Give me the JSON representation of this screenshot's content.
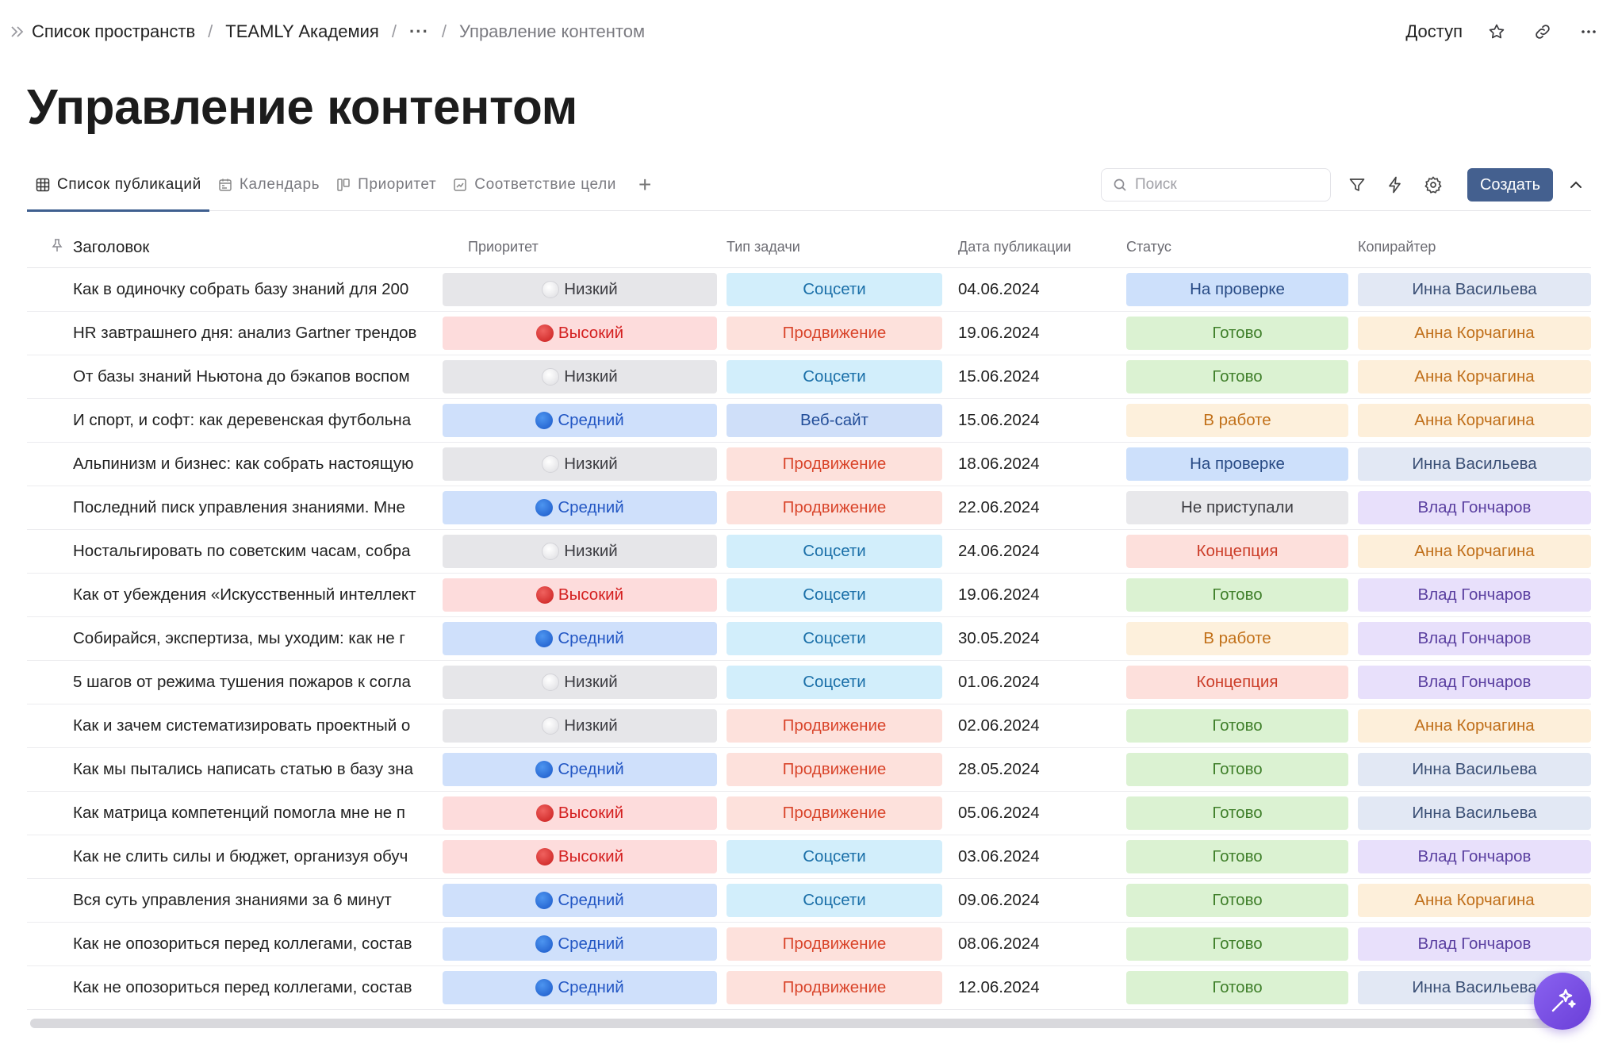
{
  "breadcrumbs": {
    "item1": "Список пространств",
    "item2": "TEAMLY Академия",
    "item3": "···",
    "current": "Управление контентом"
  },
  "top_actions": {
    "access": "Доступ"
  },
  "page_title": "Управление контентом",
  "tabs": [
    {
      "label": "Список публикаций",
      "icon": "table-icon"
    },
    {
      "label": "Календарь",
      "icon": "calendar-icon"
    },
    {
      "label": "Приоритет",
      "icon": "kanban-icon"
    },
    {
      "label": "Соответствие цели",
      "icon": "chart-icon"
    }
  ],
  "search": {
    "placeholder": "Поиск"
  },
  "create_label": "Создать",
  "columns": {
    "title": "Заголовок",
    "priority": "Приоритет",
    "type": "Тип задачи",
    "date": "Дата публикации",
    "status": "Статус",
    "author": "Копирайтер"
  },
  "rows": [
    {
      "title": "Как в одиночку собрать базу знаний для 200",
      "priority": "Низкий",
      "type": "Соцсети",
      "date": "04.06.2024",
      "status": "На проверке",
      "author": "Инна Васильева"
    },
    {
      "title": "HR завтрашнего дня: анализ Gartner трендов",
      "priority": "Высокий",
      "type": "Продвижение",
      "date": "19.06.2024",
      "status": "Готово",
      "author": "Анна Корчагина"
    },
    {
      "title": "От базы знаний Ньютона до бэкапов воспом",
      "priority": "Низкий",
      "type": "Соцсети",
      "date": "15.06.2024",
      "status": "Готово",
      "author": "Анна Корчагина"
    },
    {
      "title": "И спорт, и софт: как деревенская футбольна",
      "priority": "Средний",
      "type": "Веб-сайт",
      "date": "15.06.2024",
      "status": "В работе",
      "author": "Анна Корчагина"
    },
    {
      "title": "Альпинизм и бизнес: как собрать настоящую",
      "priority": "Низкий",
      "type": "Продвижение",
      "date": "18.06.2024",
      "status": "На проверке",
      "author": "Инна Васильева"
    },
    {
      "title": "Последний писк управления знаниями. Мне",
      "priority": "Средний",
      "type": "Продвижение",
      "date": "22.06.2024",
      "status": "Не приступали",
      "author": "Влад Гончаров"
    },
    {
      "title": "Ностальгировать по советским часам, собра",
      "priority": "Низкий",
      "type": "Соцсети",
      "date": "24.06.2024",
      "status": "Концепция",
      "author": "Анна Корчагина"
    },
    {
      "title": "Как от убеждения «Искусственный интеллект",
      "priority": "Высокий",
      "type": "Соцсети",
      "date": "19.06.2024",
      "status": "Готово",
      "author": "Влад Гончаров"
    },
    {
      "title": "Собирайся, экспертиза, мы уходим: как не г",
      "priority": "Средний",
      "type": "Соцсети",
      "date": "30.05.2024",
      "status": "В работе",
      "author": "Влад Гончаров"
    },
    {
      "title": "5 шагов от режима тушения пожаров к согла",
      "priority": "Низкий",
      "type": "Соцсети",
      "date": "01.06.2024",
      "status": "Концепция",
      "author": "Влад Гончаров"
    },
    {
      "title": "Как и зачем систематизировать проектный о",
      "priority": "Низкий",
      "type": "Продвижение",
      "date": "02.06.2024",
      "status": "Готово",
      "author": "Анна Корчагина"
    },
    {
      "title": "Как мы пытались написать статью в базу зна",
      "priority": "Средний",
      "type": "Продвижение",
      "date": "28.05.2024",
      "status": "Готово",
      "author": "Инна Васильева"
    },
    {
      "title": "Как матрица компетенций помогла мне не п",
      "priority": "Высокий",
      "type": "Продвижение",
      "date": "05.06.2024",
      "status": "Готово",
      "author": "Инна Васильева"
    },
    {
      "title": "Как не слить силы и бюджет, организуя обуч",
      "priority": "Высокий",
      "type": "Соцсети",
      "date": "03.06.2024",
      "status": "Готово",
      "author": "Влад Гончаров"
    },
    {
      "title": "Вся суть управления знаниями за 6 минут",
      "priority": "Средний",
      "type": "Соцсети",
      "date": "09.06.2024",
      "status": "Готово",
      "author": "Анна Корчагина"
    },
    {
      "title": "Как не опозориться перед коллегами, состав",
      "priority": "Средний",
      "type": "Продвижение",
      "date": "08.06.2024",
      "status": "Готово",
      "author": "Влад Гончаров"
    },
    {
      "title": "Как не опозориться перед коллегами, состав",
      "priority": "Средний",
      "type": "Продвижение",
      "date": "12.06.2024",
      "status": "Готово",
      "author": "Инна Васильева"
    }
  ],
  "colors": {
    "accent": "#44608f",
    "priority_high_dot": "#d42020",
    "priority_mid_dot": "#2357c4",
    "fab": "#7b52e6"
  }
}
